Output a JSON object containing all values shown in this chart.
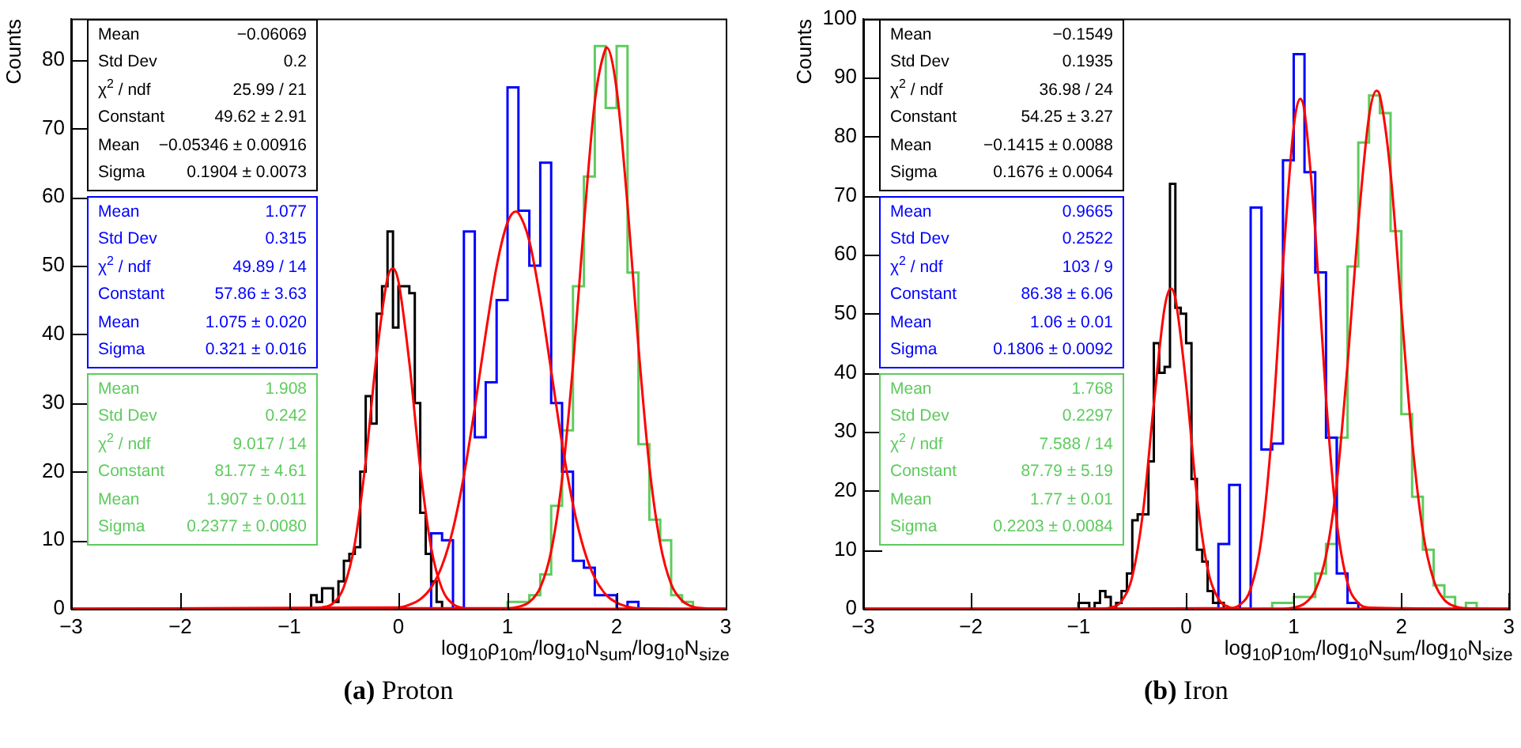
{
  "chart_data": [
    {
      "type": "histogram",
      "title": "(a) Proton",
      "xlabel": "log$_{10}$ρ$_{10m}$/log$_{10}$N$_{sum}$/log$_{10}$N$_{size}$",
      "ylabel": "Counts",
      "xlim": [
        -3,
        3
      ],
      "xticks": [
        -3,
        -2,
        -1,
        0,
        1,
        2,
        3
      ],
      "ylim": [
        0,
        86
      ],
      "yticks": [
        0,
        10,
        20,
        30,
        40,
        50,
        60,
        70,
        80
      ],
      "grid": false,
      "legend": false,
      "annotations": [
        "Mean",
        "−0.06069",
        "Std Dev",
        "0.2",
        "χ$^{2}$ / ndf",
        "25.99 / 21",
        "Constant",
        "49.62 ± 2.91",
        "Mean",
        "−0.05346 ± 0.00916",
        "Sigma",
        "0.1904 ± 0.0073",
        "Mean",
        "1.077",
        "Std Dev",
        "0.315",
        "χ$^{2}$ / ndf",
        "49.89 / 14",
        "Constant",
        "57.86 ± 3.63",
        "Mean",
        "1.075 ± 0.020",
        "Sigma",
        "0.321 ± 0.016",
        "Mean",
        "1.908",
        "Std Dev",
        "0.242",
        "χ$^{2}$ / ndf",
        "9.017 / 14",
        "Constant",
        "81.77 ± 4.61",
        "Mean",
        "1.907 ± 0.011",
        "Sigma",
        "0.2377 ± 0.0080"
      ],
      "series": [
        {
          "type": "histogram",
          "color": "#000000",
          "bins": [
            -0.85,
            -0.8,
            -0.75,
            -0.7,
            -0.65,
            -0.6,
            -0.55,
            -0.5,
            -0.45,
            -0.4,
            -0.35,
            -0.3,
            -0.25,
            -0.2,
            -0.15,
            -0.1,
            -0.05,
            0,
            0.05,
            0.1,
            0.15,
            0.2,
            0.25,
            0.3,
            0.35,
            0.4,
            0.45
          ],
          "values": [
            0,
            2,
            1,
            3,
            3,
            1,
            4,
            7,
            8,
            9,
            20,
            31,
            27,
            43,
            47,
            55,
            41,
            47,
            47,
            46,
            30,
            14,
            8,
            4,
            1,
            0
          ]
        },
        {
          "type": "histogram",
          "color": "#0000ff",
          "bins": [
            0.2,
            0.3,
            0.4,
            0.5,
            0.6,
            0.7,
            0.8,
            0.9,
            1.0,
            1.1,
            1.2,
            1.3,
            1.4,
            1.5,
            1.6,
            1.7,
            1.8,
            1.9,
            2.0,
            2.1,
            2.2,
            2.3
          ],
          "values": [
            0,
            11,
            10,
            0,
            55,
            25,
            33,
            45,
            76,
            58,
            50,
            65,
            30,
            20,
            7,
            6,
            2,
            2,
            0,
            1,
            0
          ]
        },
        {
          "type": "histogram",
          "color": "#5ecb5e",
          "bins": [
            0.9,
            1.0,
            1.1,
            1.2,
            1.3,
            1.4,
            1.5,
            1.6,
            1.7,
            1.8,
            1.9,
            2.0,
            2.1,
            2.2,
            2.3,
            2.4,
            2.5,
            2.6,
            2.7,
            2.8,
            2.9
          ],
          "values": [
            0,
            1,
            1,
            2,
            5,
            15,
            26,
            47,
            63,
            82,
            73,
            82,
            49,
            24,
            13,
            10,
            2,
            1,
            0,
            0
          ]
        },
        {
          "type": "line",
          "color": "#ff0000",
          "x": [
            -3,
            -0.8,
            -0.7,
            -0.6,
            -0.5,
            -0.4,
            -0.3,
            -0.2,
            -0.1,
            -0.05,
            0,
            0.1,
            0.2,
            0.3,
            0.4,
            0.5,
            0.6,
            0.7,
            3
          ],
          "values": [
            0,
            0,
            0.2,
            0.8,
            3.2,
            9.5,
            21.5,
            36.9,
            48.2,
            49.6,
            47.7,
            35.9,
            20.5,
            8.9,
            2.9,
            0.7,
            0.1,
            0,
            0
          ]
        },
        {
          "type": "line",
          "color": "#ff0000",
          "x": [
            -3,
            0,
            0.1,
            0.2,
            0.3,
            0.4,
            0.5,
            0.6,
            0.7,
            0.8,
            0.9,
            1.0,
            1.075,
            1.1,
            1.2,
            1.3,
            1.4,
            1.5,
            1.6,
            1.7,
            1.8,
            1.9,
            2.0,
            2.2,
            3
          ],
          "values": [
            0,
            0.2,
            0.6,
            1.4,
            3.1,
            6.3,
            11.6,
            19.4,
            29.3,
            40.1,
            49.9,
            56.3,
            57.9,
            57.7,
            53.6,
            45.2,
            34.7,
            24.1,
            15.2,
            8.7,
            4.5,
            2.1,
            0.9,
            0.1,
            0
          ]
        },
        {
          "type": "line",
          "color": "#ff0000",
          "x": [
            -3,
            1.0,
            1.1,
            1.2,
            1.3,
            1.4,
            1.5,
            1.6,
            1.7,
            1.8,
            1.9,
            1.907,
            2.0,
            2.1,
            2.2,
            2.3,
            2.4,
            2.5,
            2.6,
            2.7,
            2.8,
            3
          ],
          "values": [
            0,
            0.1,
            0.3,
            1.0,
            3.1,
            8.4,
            18.9,
            35.5,
            56.0,
            73.9,
            81.7,
            81.8,
            75.7,
            58.8,
            38.2,
            20.8,
            9.5,
            3.6,
            1.2,
            0.3,
            0.1,
            0
          ]
        }
      ]
    },
    {
      "type": "histogram",
      "title": "(b) Iron",
      "xlabel": "log$_{10}$ρ$_{10m}$/log$_{10}$N$_{sum}$/log$_{10}$N$_{size}$",
      "ylabel": "Counts",
      "xlim": [
        -3,
        3
      ],
      "xticks": [
        -3,
        -2,
        -1,
        0,
        1,
        2,
        3
      ],
      "ylim": [
        0,
        100
      ],
      "yticks": [
        0,
        10,
        20,
        30,
        40,
        50,
        60,
        70,
        80,
        90,
        100
      ],
      "grid": false,
      "legend": false,
      "annotations": [
        "Mean",
        "−0.1549",
        "Std Dev",
        "0.1935",
        "χ$^{2}$ / ndf",
        "36.98 / 24",
        "Constant",
        "54.25 ± 3.27",
        "Mean",
        "−0.1415 ± 0.0088",
        "Sigma",
        "0.1676 ± 0.0064",
        "Mean",
        "0.9665",
        "Std Dev",
        "0.2522",
        "χ$^{2}$ / ndf",
        "103 / 9",
        "Constant",
        "86.38 ± 6.06",
        "Mean",
        "1.06 ± 0.01",
        "Sigma",
        "0.1806 ± 0.0092",
        "Mean",
        "1.768",
        "Std Dev",
        "0.2297",
        "χ$^{2}$ / ndf",
        "7.588 / 14",
        "Constant",
        "87.79 ± 5.19",
        "Mean",
        "1.77 ± 0.01",
        "Sigma",
        "0.2203 ± 0.0084"
      ],
      "series": [
        {
          "type": "histogram",
          "color": "#000000",
          "bins": [
            -1.05,
            -1.0,
            -0.95,
            -0.9,
            -0.85,
            -0.8,
            -0.75,
            -0.7,
            -0.65,
            -0.6,
            -0.55,
            -0.5,
            -0.45,
            -0.4,
            -0.35,
            -0.3,
            -0.25,
            -0.2,
            -0.15,
            -0.1,
            -0.05,
            0,
            0.05,
            0.1,
            0.15,
            0.2,
            0.25,
            0.3,
            0.35,
            0.4
          ],
          "values": [
            0,
            1,
            1,
            0,
            1,
            3,
            2,
            0,
            1,
            3,
            6,
            15,
            16,
            16,
            25,
            45,
            40,
            41,
            72,
            51,
            50,
            45,
            22,
            10,
            8,
            3,
            1,
            1,
            0
          ]
        },
        {
          "type": "histogram",
          "color": "#0000ff",
          "bins": [
            0.2,
            0.3,
            0.4,
            0.5,
            0.6,
            0.7,
            0.8,
            0.9,
            1.0,
            1.1,
            1.2,
            1.3,
            1.4,
            1.5,
            1.6,
            1.7
          ],
          "values": [
            0,
            11,
            21,
            0,
            68,
            27,
            28,
            76,
            94,
            74,
            57,
            29,
            6,
            1,
            0
          ]
        },
        {
          "type": "histogram",
          "color": "#5ecb5e",
          "bins": [
            0.7,
            0.8,
            0.9,
            1.0,
            1.1,
            1.2,
            1.3,
            1.4,
            1.5,
            1.6,
            1.7,
            1.8,
            1.9,
            2.0,
            2.1,
            2.2,
            2.3,
            2.4,
            2.5,
            2.6,
            2.7,
            2.8
          ],
          "values": [
            0,
            1,
            1,
            2,
            2,
            6,
            11,
            29,
            58,
            79,
            87,
            84,
            64,
            33,
            19,
            10,
            4,
            2,
            0,
            1,
            0
          ]
        },
        {
          "type": "line",
          "color": "#ff0000",
          "x": [
            -3,
            -0.8,
            -0.7,
            -0.6,
            -0.5,
            -0.4,
            -0.3,
            -0.2,
            -0.1415,
            -0.1,
            0,
            0.1,
            0.2,
            0.3,
            0.4,
            0.5,
            3
          ],
          "values": [
            0,
            0,
            0.2,
            1.3,
            5.5,
            16.5,
            34.7,
            51.0,
            54.3,
            52.6,
            38.0,
            19.2,
            6.8,
            1.7,
            0.3,
            0,
            0
          ]
        },
        {
          "type": "line",
          "color": "#ff0000",
          "x": [
            -3,
            0.4,
            0.5,
            0.6,
            0.7,
            0.8,
            0.9,
            1.0,
            1.06,
            1.1,
            1.2,
            1.3,
            1.4,
            1.5,
            1.6,
            1.7,
            3
          ],
          "values": [
            0,
            0.1,
            0.7,
            3.4,
            11.9,
            30.6,
            58.3,
            81.7,
            86.4,
            84.3,
            64.0,
            35.7,
            14.7,
            4.4,
            1.0,
            0.2,
            0
          ]
        },
        {
          "type": "line",
          "color": "#ff0000",
          "x": [
            -3,
            0.9,
            1.0,
            1.1,
            1.2,
            1.3,
            1.4,
            1.5,
            1.6,
            1.7,
            1.77,
            1.8,
            1.9,
            2.0,
            2.1,
            2.2,
            2.3,
            2.4,
            2.5,
            2.6,
            3
          ],
          "values": [
            0,
            0,
            0.2,
            0.9,
            3.1,
            9.0,
            21.4,
            41.4,
            65.2,
            83.5,
            87.8,
            87.0,
            73.8,
            50.9,
            28.6,
            13.1,
            4.9,
            1.5,
            0.4,
            0.1,
            0
          ]
        }
      ]
    }
  ]
}
